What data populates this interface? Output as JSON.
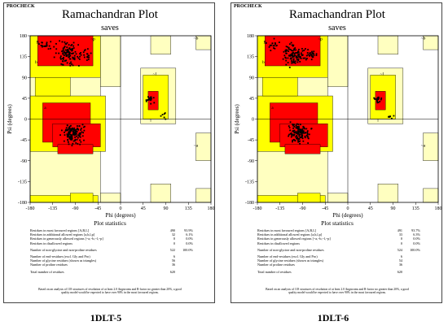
{
  "header": "PROCHECK",
  "title": "Ramachandran Plot",
  "subtitle": "saves",
  "stats_title": "Plot statistics",
  "footnote": "Based on an analysis of 118 structures of resolution of at least 2.0 Angstroms and R-factor no greater than 20%, a good quality model would be expected to have over 90% in the most favoured regions.",
  "colors": {
    "core": "#ff0000",
    "allowed": "#ffff00",
    "generous": "#ffffc0",
    "disallowed": "#ffffff",
    "points": "#000000"
  },
  "stat_labels": [
    "Residues in most favoured regions  [A,B,L]",
    "Residues in additional allowed regions  [a,b,l,p]",
    "Residues in generously allowed regions  [~a,~b,~l,~p]",
    "Residues in disallowed regions",
    "Number of non-glycine and non-proline residues",
    "Number of end-residues (excl. Gly and Pro)",
    "Number of glycine residues (shown as triangles)",
    "Number of proline residues",
    "Total number of residues"
  ],
  "chart_data": [
    {
      "type": "scatter",
      "caption": "1DLT-5",
      "xlabel": "Phi (degrees)",
      "ylabel": "Psi (degrees)",
      "xlim": [
        -180,
        180
      ],
      "ylim": [
        -180,
        180
      ],
      "xticks": [
        "-180",
        "-135",
        "-90",
        "-45",
        "0",
        "45",
        "90",
        "135",
        "180"
      ],
      "yticks": [
        "180",
        "135",
        "90",
        "45",
        "0",
        "-45",
        "-90",
        "-135",
        "-180"
      ],
      "region_labels": [
        "B",
        "b",
        "A",
        "a",
        "L",
        "~l",
        "~b",
        "~p",
        "l",
        "~a"
      ],
      "stats": [
        {
          "count": "490",
          "pct": "93.9%"
        },
        {
          "count": "32",
          "pct": "6.1%"
        },
        {
          "count": "0",
          "pct": "0.0%"
        },
        {
          "count": "0",
          "pct": "0.0%"
        },
        {
          "count": "522",
          "pct": "100.0%"
        },
        {
          "count": "6",
          "pct": ""
        },
        {
          "count": "56",
          "pct": ""
        },
        {
          "count": "36",
          "pct": ""
        },
        {
          "count": "620",
          "pct": ""
        }
      ]
    },
    {
      "type": "scatter",
      "caption": "1DLT-6",
      "xlabel": "Phi (degrees)",
      "ylabel": "Psi (degrees)",
      "xlim": [
        -180,
        180
      ],
      "ylim": [
        -180,
        180
      ],
      "xticks": [
        "-180",
        "-135",
        "-90",
        "-45",
        "0",
        "45",
        "90",
        "135",
        "180"
      ],
      "yticks": [
        "180",
        "135",
        "90",
        "45",
        "0",
        "-45",
        "-90",
        "-135",
        "-180"
      ],
      "region_labels": [
        "B",
        "b",
        "A",
        "a",
        "L",
        "~l",
        "~b",
        "~p",
        "l",
        "~a"
      ],
      "stats": [
        {
          "count": "491",
          "pct": "93.7%"
        },
        {
          "count": "33",
          "pct": "6.3%"
        },
        {
          "count": "0",
          "pct": "0.0%"
        },
        {
          "count": "0",
          "pct": "0.0%"
        },
        {
          "count": "524",
          "pct": "100.0%"
        },
        {
          "count": "6",
          "pct": ""
        },
        {
          "count": "54",
          "pct": ""
        },
        {
          "count": "36",
          "pct": ""
        },
        {
          "count": "620",
          "pct": ""
        }
      ]
    }
  ]
}
